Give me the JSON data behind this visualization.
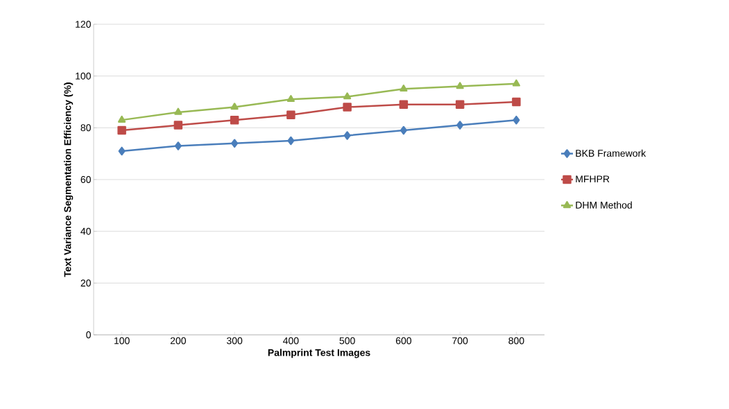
{
  "chart_data": {
    "type": "line",
    "xlabel": "Palmprint Test Images",
    "ylabel": "Text  Variance Segmentation Efficiency (%)",
    "categories": [
      "100",
      "200",
      "300",
      "400",
      "500",
      "600",
      "700",
      "800"
    ],
    "series": [
      {
        "name": "BKB Framework",
        "color": "#4a7ebb",
        "marker": "diamond",
        "values": [
          71,
          73,
          74,
          75,
          77,
          79,
          81,
          83
        ]
      },
      {
        "name": "MFHPR",
        "color": "#be4b48",
        "marker": "square",
        "values": [
          79,
          81,
          83,
          85,
          88,
          89,
          89,
          90
        ]
      },
      {
        "name": "DHM Method",
        "color": "#98b954",
        "marker": "triangle",
        "values": [
          83,
          86,
          88,
          91,
          92,
          95,
          96,
          97
        ]
      }
    ],
    "ylim": [
      0,
      120
    ],
    "yticks": [
      0,
      20,
      40,
      60,
      80,
      100,
      120
    ],
    "grid": "y",
    "legend": "right",
    "line_style": "solid"
  }
}
